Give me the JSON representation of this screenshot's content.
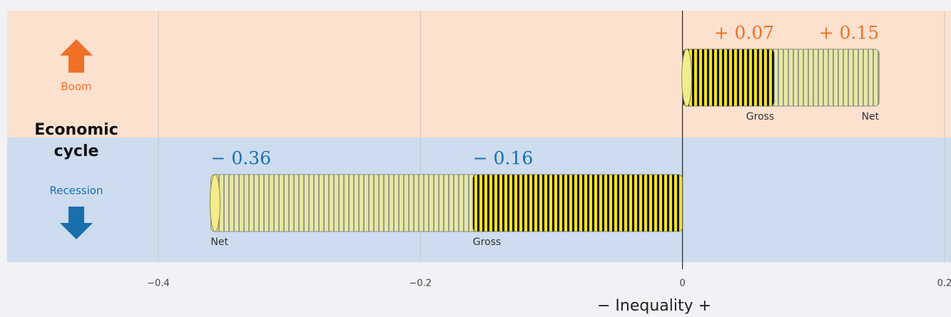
{
  "chart_data": {
    "type": "coin-bar",
    "categories": [
      "Boom",
      "Recession"
    ],
    "category_colors": [
      "#f07028",
      "#1a6fad"
    ],
    "band_colors": [
      "#fde1cf",
      "#cddcee"
    ],
    "row_title": "Economic cycle",
    "x_label": "− Inequality +",
    "series": [
      {
        "name": "Gross",
        "color": "#f2e21c",
        "values": [
          0.07,
          -0.16
        ],
        "value_labels": [
          "+ 0.07",
          "− 0.16"
        ]
      },
      {
        "name": "Net",
        "color": "#e6e8a4",
        "values": [
          0.15,
          -0.36
        ],
        "value_labels": [
          "+ 0.15",
          "− 0.36"
        ]
      }
    ],
    "xlim": [
      -0.5154,
      0.2049
    ],
    "xticks": [
      {
        "value": -0.4,
        "label": "−0.4"
      },
      {
        "value": -0.2,
        "label": "−0.2"
      },
      0,
      0.2
    ],
    "grid": true
  }
}
